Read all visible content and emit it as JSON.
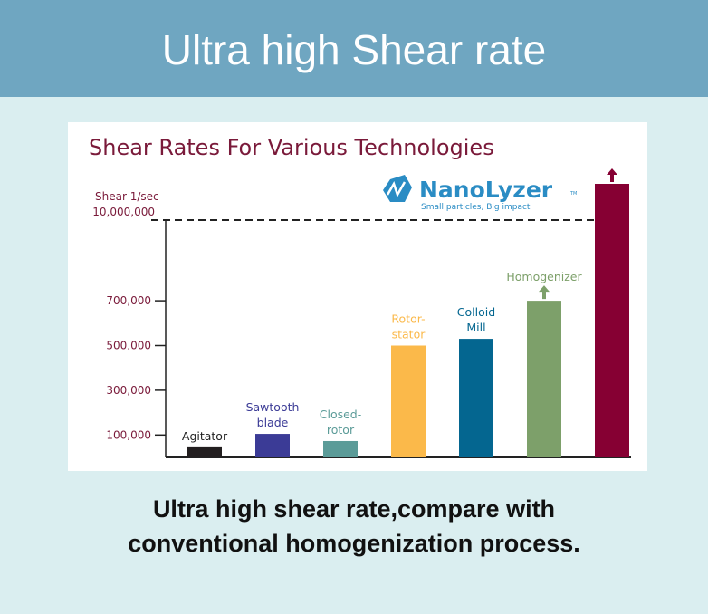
{
  "header": {
    "title": "Ultra high Shear rate"
  },
  "caption": {
    "line1": "Ultra high shear rate,compare with",
    "line2": "conventional homogenization process."
  },
  "logo": {
    "name": "NanoLyzer",
    "tm": "TM",
    "tagline": "Small particles, Big impact"
  },
  "chart_data": {
    "type": "bar",
    "title": "Shear Rates For Various Technologies",
    "ylabel": "Shear 1/sec",
    "yticks": [
      {
        "label": "100,000",
        "value": 100000
      },
      {
        "label": "300,000",
        "value": 300000
      },
      {
        "label": "500,000",
        "value": 500000
      },
      {
        "label": "700,000",
        "value": 700000
      },
      {
        "label": "10,000,000",
        "value": 10000000
      }
    ],
    "ylim": [
      0,
      10000000
    ],
    "axis_break": true,
    "reference_line": {
      "value": 10000000,
      "style": "dashed"
    },
    "bars": [
      {
        "label": [
          "Agitator"
        ],
        "value": 45000,
        "color": "#231f20",
        "arrow": false
      },
      {
        "label": [
          "Sawtooth",
          "blade"
        ],
        "value": 105000,
        "color": "#3b3b96",
        "arrow": false
      },
      {
        "label": [
          "Closed-",
          "rotor"
        ],
        "value": 73000,
        "color": "#5b9b98",
        "arrow": false
      },
      {
        "label": [
          "Rotor-",
          "stator"
        ],
        "value": 500000,
        "color": "#fbb94a",
        "arrow": false
      },
      {
        "label": [
          "Colloid",
          "Mill"
        ],
        "value": 530000,
        "color": "#046690",
        "arrow": false
      },
      {
        "label": [
          "Homogenizer"
        ],
        "value": 700000,
        "color": "#7da06a",
        "arrow": true
      },
      {
        "label": [],
        "value": 12000000,
        "color": "#860033",
        "arrow": true
      }
    ]
  }
}
